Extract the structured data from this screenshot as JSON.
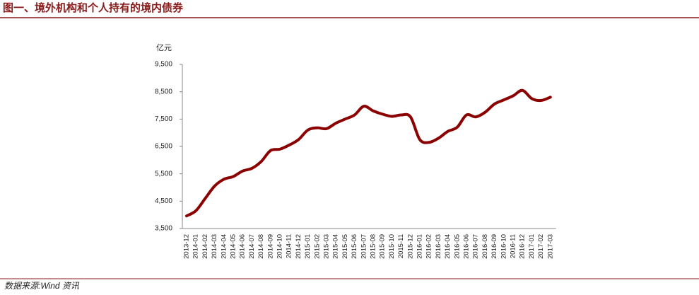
{
  "chart_data": {
    "type": "line",
    "title": "图一、境外机构和个人持有的境内债券",
    "y_label": "亿元",
    "source": "数据来源:Wind 资讯",
    "categories": [
      "2013-12",
      "2014-01",
      "2014-02",
      "2014-03",
      "2014-04",
      "2014-05",
      "2014-06",
      "2014-07",
      "2014-08",
      "2014-09",
      "2014-10",
      "2014-11",
      "2014-12",
      "2015-01",
      "2015-02",
      "2015-03",
      "2015-04",
      "2015-05",
      "2015-06",
      "2015-07",
      "2015-08",
      "2015-09",
      "2015-10",
      "2015-11",
      "2015-12",
      "2016-01",
      "2016-02",
      "2016-03",
      "2016-04",
      "2016-05",
      "2016-06",
      "2016-07",
      "2016-08",
      "2016-09",
      "2016-10",
      "2016-11",
      "2016-12",
      "2017-01",
      "2017-02",
      "2017-03"
    ],
    "series": [
      {
        "color": "#8b0000",
        "values": [
          3960,
          4150,
          4600,
          5050,
          5300,
          5400,
          5600,
          5700,
          5950,
          6350,
          6400,
          6550,
          6750,
          7100,
          7180,
          7150,
          7350,
          7500,
          7650,
          7970,
          7800,
          7680,
          7600,
          7650,
          7580,
          6750,
          6650,
          6800,
          7050,
          7200,
          7650,
          7580,
          7750,
          8050,
          8200,
          8350,
          8550,
          8250,
          8180,
          8300
        ]
      }
    ],
    "ylim": [
      3500,
      9500
    ],
    "yticks": [
      {
        "value": 3500,
        "label": "3,500"
      },
      {
        "value": 4500,
        "label": "4,500"
      },
      {
        "value": 5500,
        "label": "5,500"
      },
      {
        "value": 6500,
        "label": "6,500"
      },
      {
        "value": 7500,
        "label": "7,500"
      },
      {
        "value": 8500,
        "label": "8,500"
      },
      {
        "value": 9500,
        "label": "9,500"
      }
    ]
  }
}
